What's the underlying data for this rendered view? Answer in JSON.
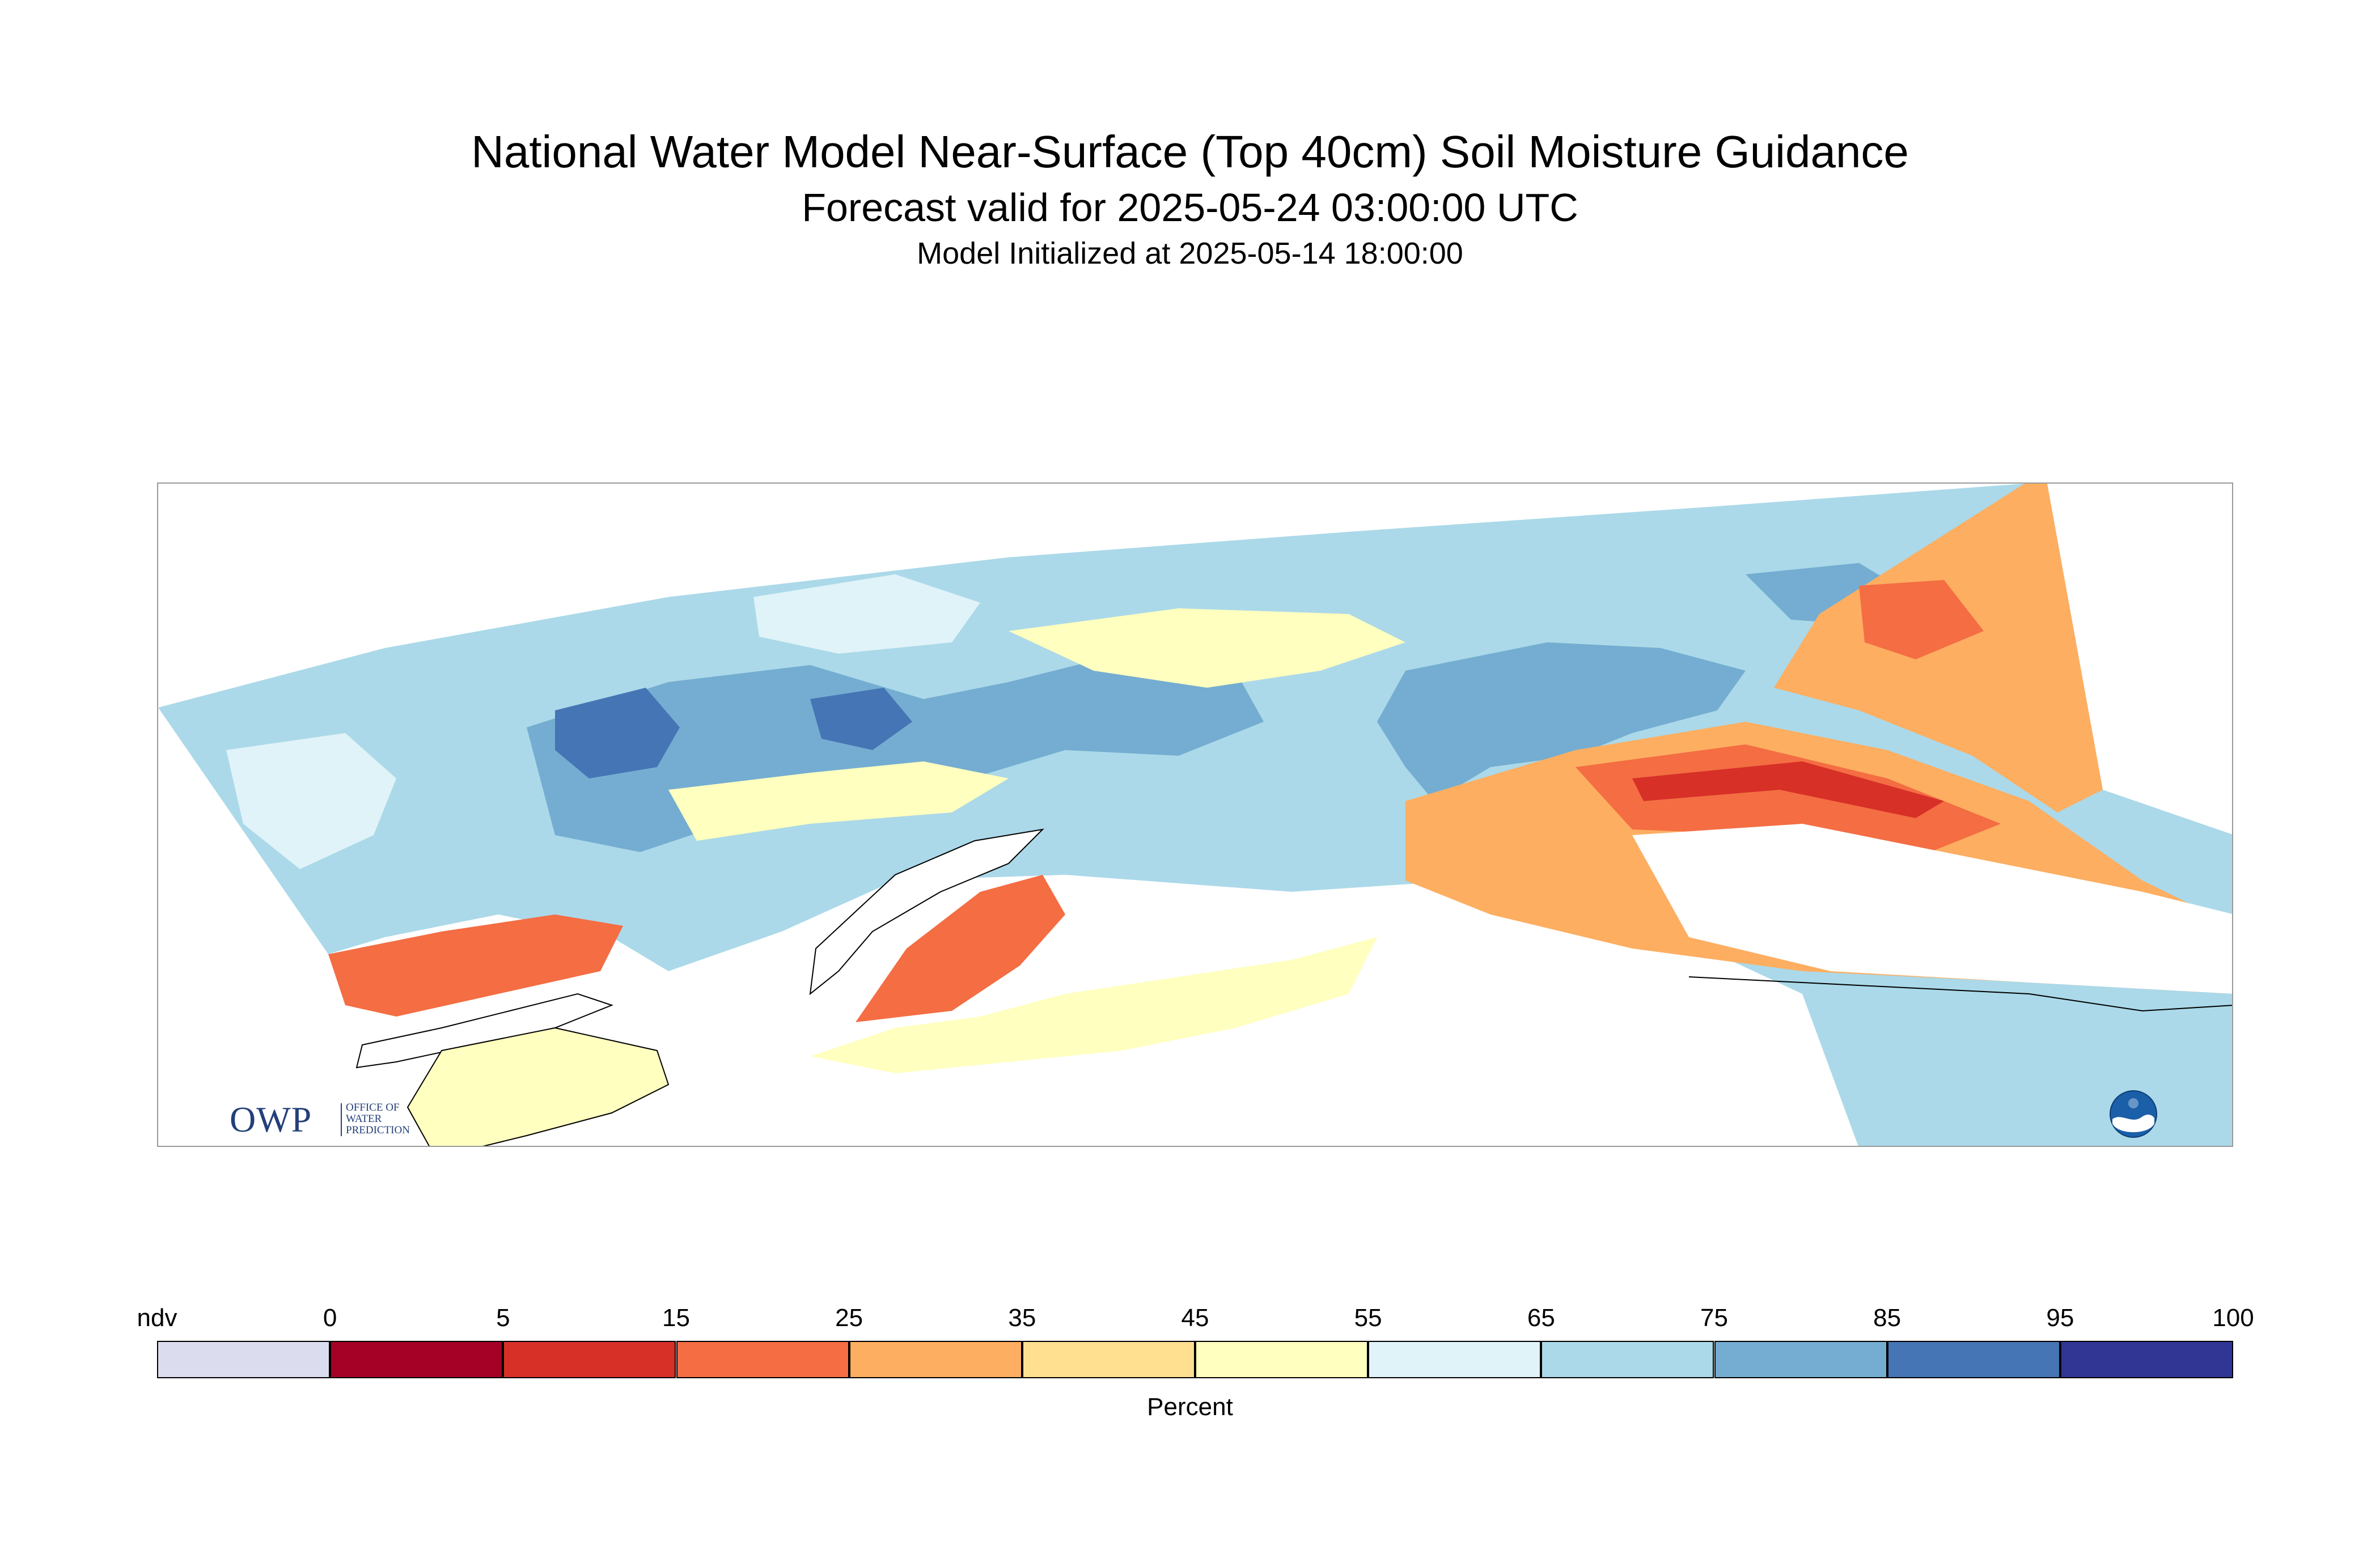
{
  "header": {
    "title": "National Water Model Near-Surface (Top 40cm) Soil Moisture Guidance",
    "subtitle": "Forecast valid for 2025-05-24 03:00:00 UTC",
    "init": "Model Initialized at 2025-05-14 18:00:00"
  },
  "map": {
    "region_colors": {
      "ocean": "#ffffff",
      "coastline": "#000000"
    }
  },
  "logos": {
    "owp_mark": "OWP",
    "owp_lines": [
      "Office of",
      "Water",
      "Prediction"
    ],
    "noaa_icon": "noaa-logo-icon"
  },
  "legend": {
    "label": "Percent",
    "ticks": [
      "ndv",
      "0",
      "5",
      "15",
      "25",
      "35",
      "45",
      "55",
      "65",
      "75",
      "85",
      "95",
      "100"
    ],
    "bins": [
      {
        "label": "ndv",
        "color": "#dcdcef"
      },
      {
        "label": "0-5",
        "color": "#a50026"
      },
      {
        "label": "5-15",
        "color": "#d73027"
      },
      {
        "label": "15-25",
        "color": "#f46d43"
      },
      {
        "label": "25-35",
        "color": "#fdae61"
      },
      {
        "label": "35-45",
        "color": "#fee090"
      },
      {
        "label": "45-55",
        "color": "#ffffbf"
      },
      {
        "label": "55-65",
        "color": "#e0f3f8"
      },
      {
        "label": "65-75",
        "color": "#abd9e9"
      },
      {
        "label": "75-85",
        "color": "#74add1"
      },
      {
        "label": "85-95",
        "color": "#4575b4"
      },
      {
        "label": "95-100",
        "color": "#313695"
      }
    ]
  }
}
